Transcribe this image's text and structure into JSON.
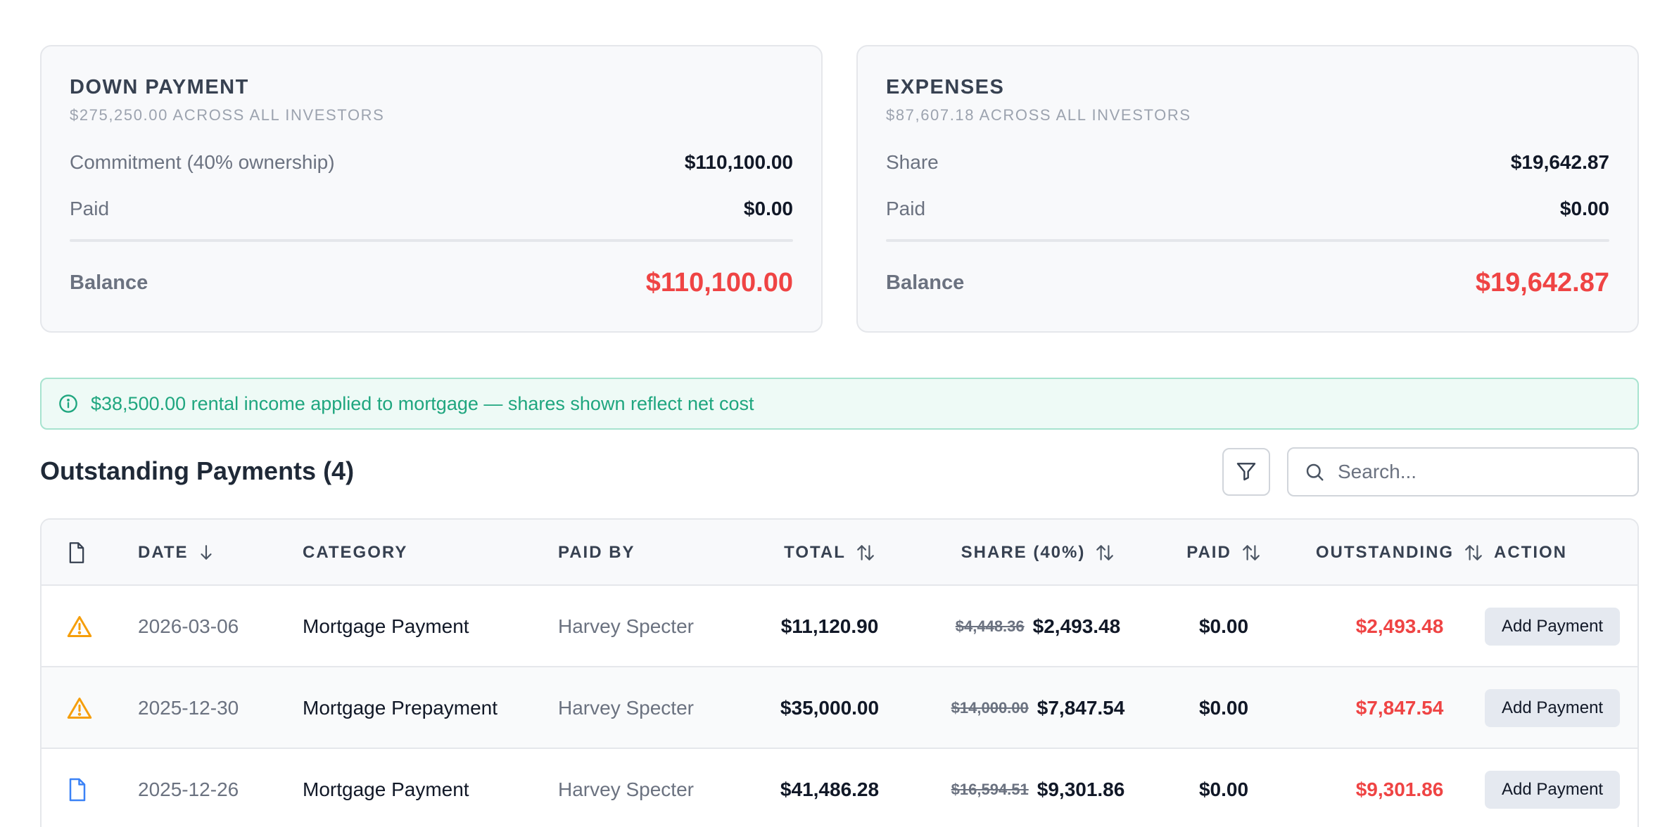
{
  "down_payment": {
    "title": "DOWN PAYMENT",
    "subtitle": "$275,250.00 ACROSS ALL INVESTORS",
    "commitment_label": "Commitment (40% ownership)",
    "commitment_value": "$110,100.00",
    "paid_label": "Paid",
    "paid_value": "$0.00",
    "balance_label": "Balance",
    "balance_value": "$110,100.00"
  },
  "expenses": {
    "title": "EXPENSES",
    "subtitle": "$87,607.18 ACROSS ALL INVESTORS",
    "share_label": "Share",
    "share_value": "$19,642.87",
    "paid_label": "Paid",
    "paid_value": "$0.00",
    "balance_label": "Balance",
    "balance_value": "$19,642.87"
  },
  "banner": {
    "icon": "info-circle-icon",
    "text": "$38,500.00 rental income applied to mortgage — shares shown reflect net cost"
  },
  "section": {
    "title": "Outstanding Payments (4)",
    "filter_icon": "filter-icon",
    "search_placeholder": "Search..."
  },
  "table": {
    "columns": {
      "date": "DATE",
      "category": "CATEGORY",
      "paid_by": "PAID BY",
      "total": "TOTAL",
      "share": "SHARE (40%)",
      "paid": "PAID",
      "outstanding": "OUTSTANDING",
      "action": "ACTION"
    },
    "rows": [
      {
        "icon": "warning-icon",
        "date": "2026-03-06",
        "category": "Mortgage Payment",
        "paid_by": "Harvey Specter",
        "total": "$11,120.90",
        "share_original": "$4,448.36",
        "share": "$2,493.48",
        "paid": "$0.00",
        "outstanding": "$2,493.48",
        "action": "Add Payment"
      },
      {
        "icon": "warning-icon",
        "date": "2025-12-30",
        "category": "Mortgage Prepayment",
        "paid_by": "Harvey Specter",
        "total": "$35,000.00",
        "share_original": "$14,000.00",
        "share": "$7,847.54",
        "paid": "$0.00",
        "outstanding": "$7,847.54",
        "action": "Add Payment"
      },
      {
        "icon": "document-icon",
        "date": "2025-12-26",
        "category": "Mortgage Payment",
        "paid_by": "Harvey Specter",
        "total": "$41,486.28",
        "share_original": "$16,594.51",
        "share": "$9,301.86",
        "paid": "$0.00",
        "outstanding": "$9,301.86",
        "action": "Add Payment"
      }
    ]
  },
  "colors": {
    "accent_red": "#ef4444",
    "banner_green": "#1fa67f",
    "warning_orange": "#f59e0b",
    "document_blue": "#3b82f6"
  }
}
